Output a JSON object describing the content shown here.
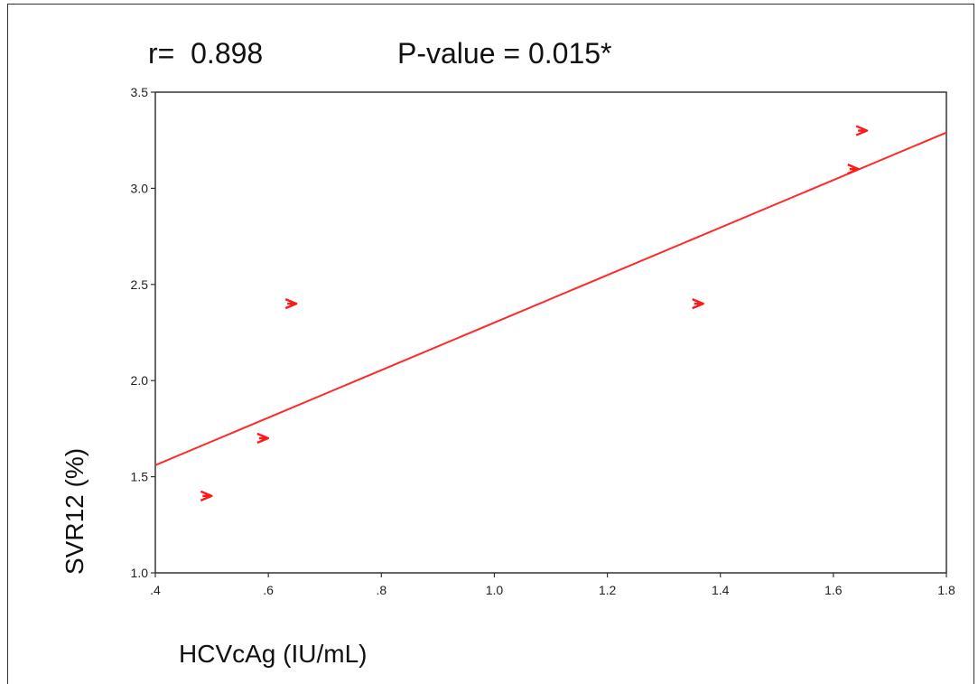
{
  "chart_data": {
    "type": "scatter",
    "annotations": {
      "r_text": "r=  0.898",
      "p_text": "P-value = 0.015*"
    },
    "xlabel": "HCVcAg (IU/mL)",
    "ylabel": "SVR12 (%)",
    "xlim": [
      0.4,
      1.8
    ],
    "ylim": [
      1.0,
      3.5
    ],
    "x_ticks": [
      ".4",
      ".6",
      ".8",
      "1.0",
      "1.2",
      "1.4",
      "1.6",
      "1.8"
    ],
    "y_ticks": [
      "1.0",
      "1.5",
      "2.0",
      "2.5",
      "3.0",
      "3.5"
    ],
    "points": [
      {
        "x": 0.49,
        "y": 1.4
      },
      {
        "x": 0.59,
        "y": 1.7
      },
      {
        "x": 0.64,
        "y": 2.4
      },
      {
        "x": 1.36,
        "y": 2.4
      },
      {
        "x": 1.635,
        "y": 3.1
      },
      {
        "x": 1.65,
        "y": 3.3
      }
    ],
    "fit_line": {
      "x": [
        0.4,
        1.8
      ],
      "y": [
        1.56,
        3.29
      ]
    },
    "grid": false,
    "colors": {
      "points": "#ff1a1a",
      "fit_line": "#ff2a2a",
      "axes": "#333333"
    }
  }
}
